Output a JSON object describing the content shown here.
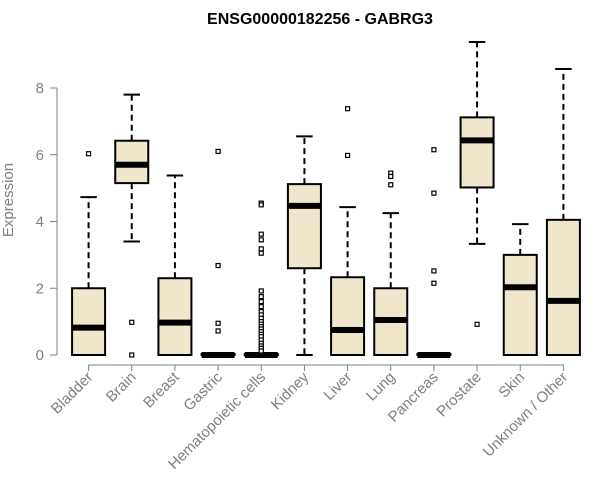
{
  "chart_data": {
    "type": "boxplot",
    "title": "ENSG00000182256 - GABRG3",
    "xlabel": "",
    "ylabel": "Expression",
    "ylim": [
      0,
      9.3
    ],
    "yticks": [
      0,
      2,
      4,
      6,
      8
    ],
    "box_fill": "#efe6cc",
    "categories": [
      "Bladder",
      "Brain",
      "Breast",
      "Gastric",
      "Hematopoietic cells",
      "Kidney",
      "Liver",
      "Lung",
      "Pancreas",
      "Prostate",
      "Skin",
      "Unknown / Other"
    ],
    "boxes": [
      {
        "min": 0,
        "q1": 0,
        "median": 0.82,
        "q3": 2.0,
        "max": 4.73,
        "outliers": [
          6.03
        ]
      },
      {
        "min": 3.4,
        "q1": 5.15,
        "median": 5.7,
        "q3": 6.42,
        "max": 7.8,
        "outliers": [
          0.98,
          0.0
        ]
      },
      {
        "min": 0,
        "q1": 0,
        "median": 0.97,
        "q3": 2.3,
        "max": 5.38,
        "outliers": []
      },
      {
        "min": 0,
        "q1": 0,
        "median": 0.0,
        "q3": 0.03,
        "max": 0.03,
        "outliers": [
          6.1,
          2.68,
          0.95,
          0.72
        ]
      },
      {
        "min": 0,
        "q1": 0,
        "median": 0.0,
        "q3": 0.03,
        "max": 0.03,
        "outliers": [
          4.55,
          4.5,
          3.62,
          3.45,
          3.18,
          3.05,
          1.92,
          1.75,
          1.6,
          1.45,
          1.3,
          1.2,
          1.1,
          1.0,
          0.92,
          0.85,
          0.78,
          0.7,
          0.62,
          0.55,
          0.45,
          0.35,
          0.27,
          0.2,
          0.12
        ]
      },
      {
        "min": 0,
        "q1": 2.6,
        "median": 4.47,
        "q3": 5.12,
        "max": 6.55,
        "outliers": []
      },
      {
        "min": 0,
        "q1": 0,
        "median": 0.75,
        "q3": 2.33,
        "max": 4.43,
        "outliers": [
          7.38,
          5.98
        ]
      },
      {
        "min": 0,
        "q1": 0,
        "median": 1.05,
        "q3": 2.0,
        "max": 4.25,
        "outliers": [
          5.45,
          5.35,
          5.1
        ]
      },
      {
        "min": 0,
        "q1": 0,
        "median": 0.0,
        "q3": 0.03,
        "max": 0.03,
        "outliers": [
          6.15,
          4.85,
          2.52,
          2.15
        ]
      },
      {
        "min": 3.33,
        "q1": 5.02,
        "median": 6.43,
        "q3": 7.12,
        "max": 9.38,
        "outliers": [
          0.92
        ]
      },
      {
        "min": 0,
        "q1": 0,
        "median": 2.03,
        "q3": 3.0,
        "max": 3.92,
        "outliers": []
      },
      {
        "min": 0,
        "q1": 0,
        "median": 1.62,
        "q3": 4.05,
        "max": 8.57,
        "outliers": []
      }
    ]
  }
}
